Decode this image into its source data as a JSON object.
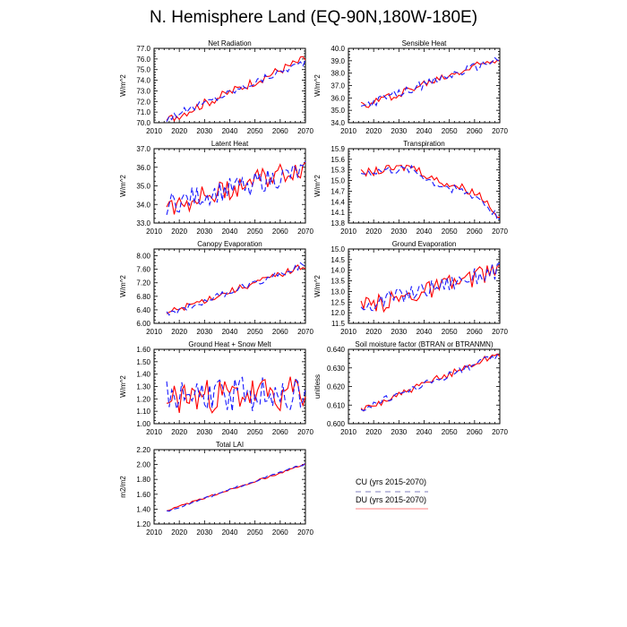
{
  "page": {
    "title": "N. Hemisphere Land (EQ-90N,180W-180E)"
  },
  "legend": {
    "entries": [
      {
        "label": "CU (yrs 2015-2070)",
        "color": "#1a1aff",
        "style": "dashed"
      },
      {
        "label": "DU (yrs 2015-2070)",
        "color": "#ff0000",
        "style": "solid"
      }
    ]
  },
  "chart_data": [
    {
      "type": "line",
      "title": "Net Radiation",
      "xlabel": "",
      "ylabel": "W/m^2",
      "xlim": [
        2010,
        2070
      ],
      "ylim": [
        70.0,
        77.0
      ],
      "xticks": [
        2010,
        2020,
        2030,
        2040,
        2050,
        2060,
        2070
      ],
      "yticks": [
        70.0,
        71.0,
        72.0,
        73.0,
        74.0,
        75.0,
        76.0,
        77.0
      ],
      "ydec": 1,
      "series": [
        {
          "name": "CU",
          "trend": [
            70.4,
            75.8
          ],
          "noise": 0.35
        },
        {
          "name": "DU",
          "trend": [
            70.2,
            76.0
          ],
          "noise": 0.45
        }
      ]
    },
    {
      "type": "line",
      "title": "Sensible Heat",
      "xlabel": "",
      "ylabel": "W/m^2",
      "xlim": [
        2010,
        2070
      ],
      "ylim": [
        34.0,
        40.0
      ],
      "xticks": [
        2010,
        2020,
        2030,
        2040,
        2050,
        2060,
        2070
      ],
      "yticks": [
        34.0,
        35.0,
        36.0,
        37.0,
        38.0,
        39.0,
        40.0
      ],
      "ydec": 1,
      "series": [
        {
          "name": "CU",
          "trend": [
            35.3,
            39.2
          ],
          "noise": 0.35
        },
        {
          "name": "DU",
          "trend": [
            35.3,
            39.3
          ],
          "noise": 0.35
        }
      ]
    },
    {
      "type": "line",
      "title": "Latent Heat",
      "xlabel": "",
      "ylabel": "W/m^2",
      "xlim": [
        2010,
        2070
      ],
      "ylim": [
        33.0,
        37.0
      ],
      "xticks": [
        2010,
        2020,
        2030,
        2040,
        2050,
        2060,
        2070
      ],
      "yticks": [
        33.0,
        34.0,
        35.0,
        36.0,
        37.0
      ],
      "ydec": 1,
      "series": [
        {
          "name": "CU",
          "trend": [
            34.0,
            35.8
          ],
          "noise": 0.6
        },
        {
          "name": "DU",
          "trend": [
            33.9,
            36.0
          ],
          "noise": 0.6
        }
      ]
    },
    {
      "type": "line",
      "title": "Transpiration",
      "xlabel": "",
      "ylabel": "W/m^2",
      "xlim": [
        2010,
        2070
      ],
      "ylim": [
        13.8,
        15.9
      ],
      "xticks": [
        2010,
        2020,
        2030,
        2040,
        2050,
        2060,
        2070
      ],
      "yticks": [
        13.8,
        14.1,
        14.4,
        14.7,
        15.0,
        15.3,
        15.6,
        15.9
      ],
      "ydec": 1,
      "series": [
        {
          "name": "CU",
          "points": [
            [
              2015,
              15.2
            ],
            [
              2025,
              15.3
            ],
            [
              2035,
              15.3
            ],
            [
              2045,
              14.9
            ],
            [
              2055,
              14.7
            ],
            [
              2062,
              14.5
            ],
            [
              2070,
              13.9
            ]
          ],
          "noise": 0.12
        },
        {
          "name": "DU",
          "points": [
            [
              2015,
              15.2
            ],
            [
              2025,
              15.3
            ],
            [
              2035,
              15.4
            ],
            [
              2045,
              15.0
            ],
            [
              2055,
              14.8
            ],
            [
              2062,
              14.6
            ],
            [
              2070,
              14.0
            ]
          ],
          "noise": 0.12
        }
      ]
    },
    {
      "type": "line",
      "title": "Canopy Evaporation",
      "xlabel": "",
      "ylabel": "W/m^2",
      "xlim": [
        2010,
        2070
      ],
      "ylim": [
        6.0,
        8.2
      ],
      "xticks": [
        2010,
        2020,
        2030,
        2040,
        2050,
        2060,
        2070
      ],
      "yticks": [
        6.0,
        6.4,
        6.8,
        7.2,
        7.6,
        8.0
      ],
      "ydec": 2,
      "series": [
        {
          "name": "CU",
          "trend": [
            6.25,
            7.75
          ],
          "noise": 0.1
        },
        {
          "name": "DU",
          "trend": [
            6.3,
            7.7
          ],
          "noise": 0.1
        }
      ]
    },
    {
      "type": "line",
      "title": "Ground Evaporation",
      "xlabel": "",
      "ylabel": "W/m^2",
      "xlim": [
        2010,
        2070
      ],
      "ylim": [
        11.5,
        15.0
      ],
      "xticks": [
        2010,
        2020,
        2030,
        2040,
        2050,
        2060,
        2070
      ],
      "yticks": [
        11.5,
        12.0,
        12.5,
        13.0,
        13.5,
        14.0,
        14.5,
        15.0
      ],
      "ydec": 1,
      "series": [
        {
          "name": "CU",
          "trend": [
            12.3,
            14.0
          ],
          "noise": 0.4
        },
        {
          "name": "DU",
          "trend": [
            12.2,
            14.0
          ],
          "noise": 0.45
        }
      ]
    },
    {
      "type": "line",
      "title": "Ground Heat + Snow Melt",
      "xlabel": "",
      "ylabel": "W/m^2",
      "xlim": [
        2010,
        2070
      ],
      "ylim": [
        1.0,
        1.6
      ],
      "xticks": [
        2010,
        2020,
        2030,
        2040,
        2050,
        2060,
        2070
      ],
      "yticks": [
        1.0,
        1.1,
        1.2,
        1.3,
        1.4,
        1.5,
        1.6
      ],
      "ydec": 2,
      "series": [
        {
          "name": "CU",
          "trend": [
            1.22,
            1.25
          ],
          "noise": 0.14
        },
        {
          "name": "DU",
          "trend": [
            1.2,
            1.25
          ],
          "noise": 0.14
        }
      ]
    },
    {
      "type": "line",
      "title": "Soil moisture factor (BTRAN or BTRANMN)",
      "xlabel": "",
      "ylabel": "unitless",
      "xlim": [
        2010,
        2070
      ],
      "ylim": [
        0.6,
        0.64
      ],
      "xticks": [
        2010,
        2020,
        2030,
        2040,
        2050,
        2060,
        2070
      ],
      "yticks": [
        0.6,
        0.61,
        0.62,
        0.63,
        0.64
      ],
      "ydec": 3,
      "series": [
        {
          "name": "CU",
          "trend": [
            0.608,
            0.637
          ],
          "noise": 0.002
        },
        {
          "name": "DU",
          "trend": [
            0.607,
            0.638
          ],
          "noise": 0.002
        }
      ]
    },
    {
      "type": "line",
      "title": "Total LAI",
      "xlabel": "",
      "ylabel": "m2/m2",
      "xlim": [
        2010,
        2070
      ],
      "ylim": [
        1.2,
        2.2
      ],
      "xticks": [
        2010,
        2020,
        2030,
        2040,
        2050,
        2060,
        2070
      ],
      "yticks": [
        1.2,
        1.4,
        1.6,
        1.8,
        2.0,
        2.2
      ],
      "ydec": 2,
      "series": [
        {
          "name": "CU",
          "trend": [
            1.37,
            2.01
          ],
          "noise": 0.012
        },
        {
          "name": "DU",
          "trend": [
            1.38,
            2.0
          ],
          "noise": 0.012
        }
      ]
    }
  ]
}
